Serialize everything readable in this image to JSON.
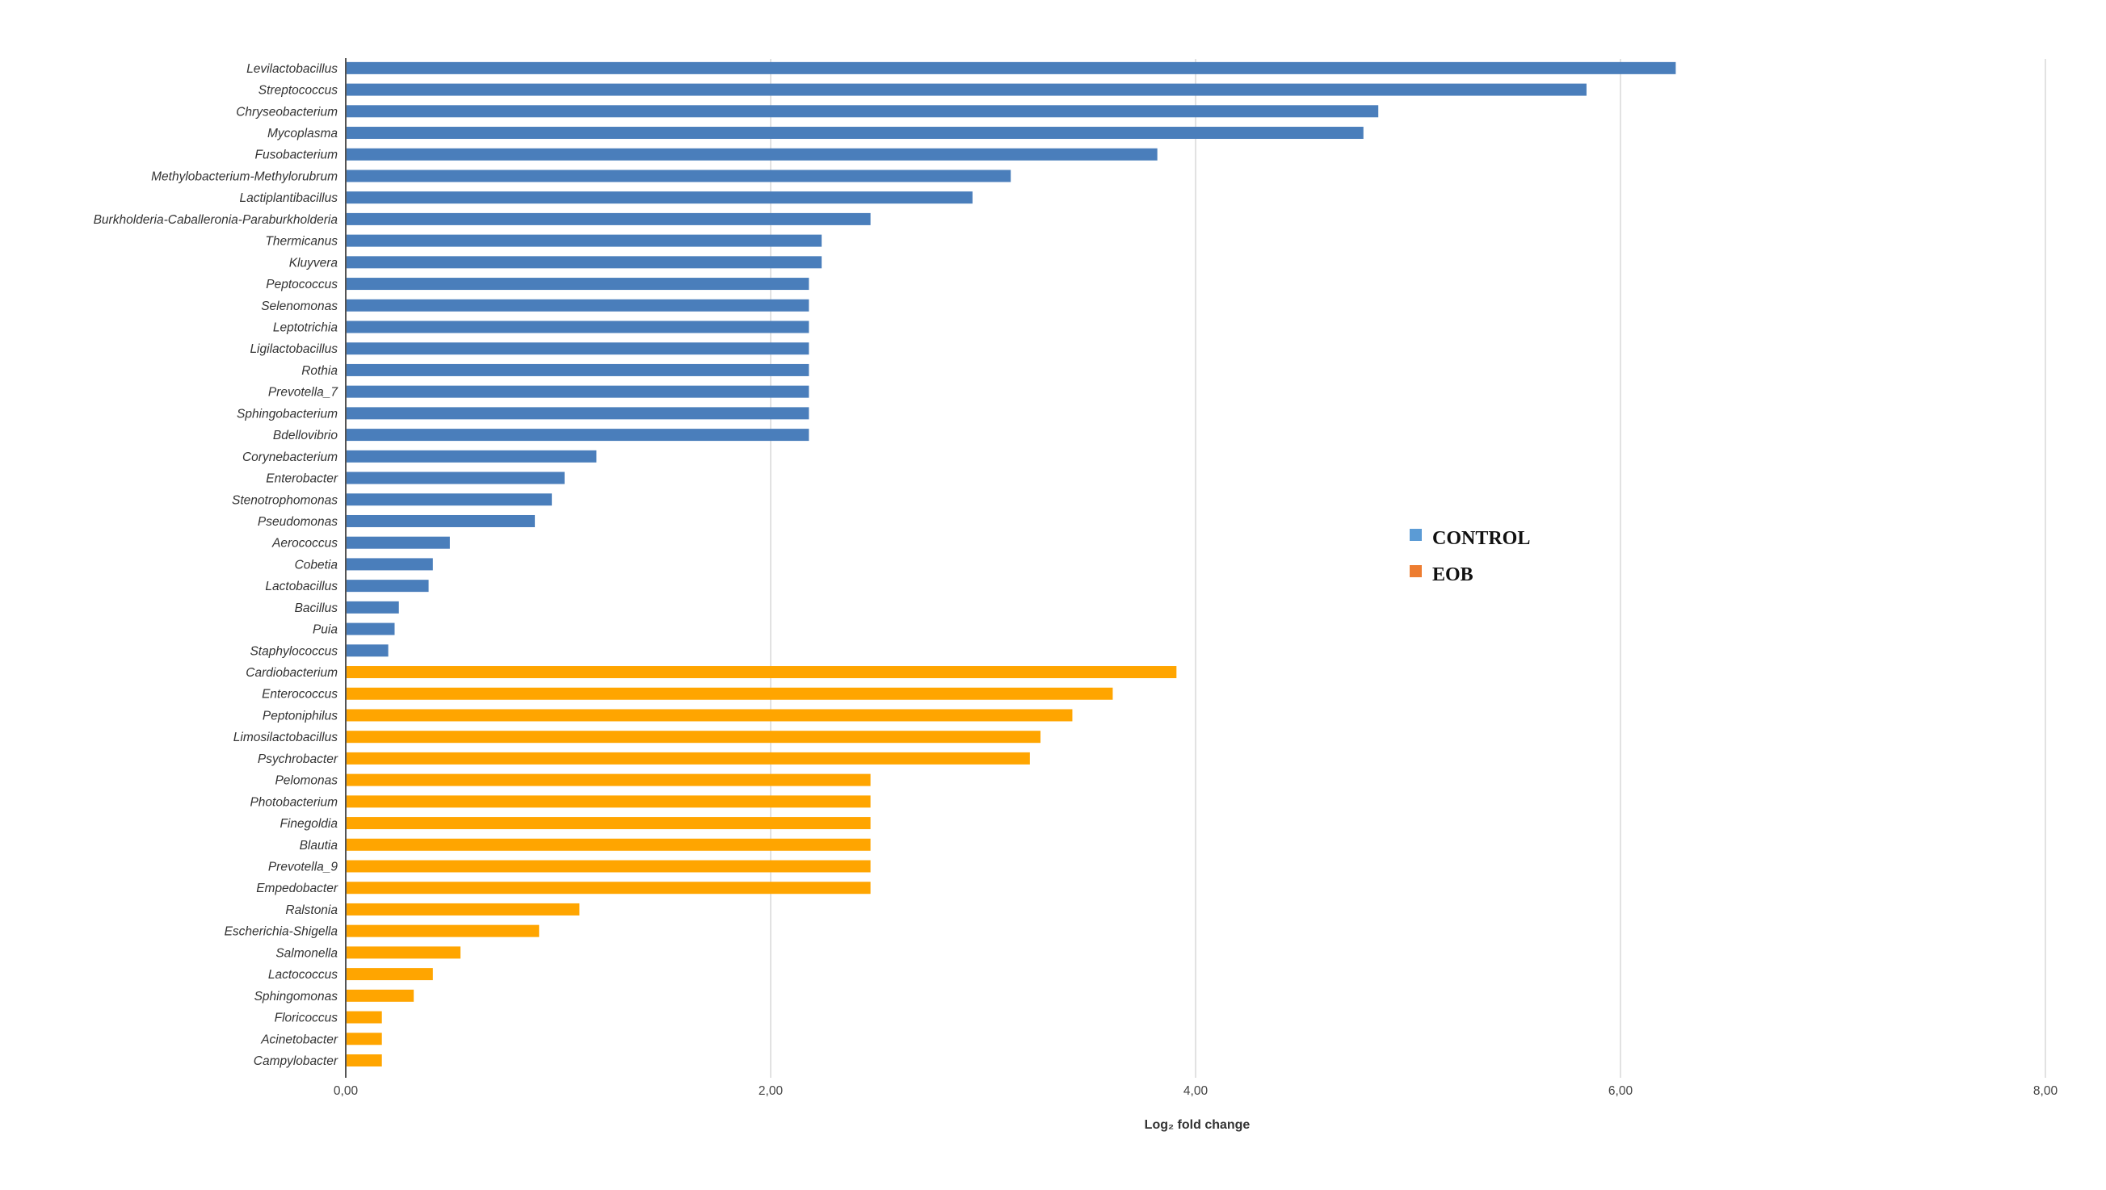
{
  "chart_data": {
    "type": "bar",
    "orientation": "horizontal",
    "title": "",
    "xlabel": "Log₂ fold change",
    "ylabel": "",
    "xlim": [
      0,
      8
    ],
    "x_ticks": [
      0,
      2,
      4,
      6,
      8
    ],
    "x_tick_labels": [
      "0,00",
      "2,00",
      "4,00",
      "6,00",
      "8,00"
    ],
    "grid": "vertical",
    "legend_position": "center-right",
    "series": [
      {
        "name": "CONTROL",
        "color": "#4A7EBB",
        "categories": [
          "Levilactobacillus",
          "Streptococcus",
          "Chryseobacterium",
          "Mycoplasma",
          "Fusobacterium",
          "Methylobacterium-Methylorubrum",
          "Lactiplantibacillus",
          "Burkholderia-Caballeronia-Paraburkholderia",
          "Thermicanus",
          "Kluyvera",
          "Peptococcus",
          "Selenomonas",
          "Leptotrichia",
          "Ligilactobacillus",
          "Rothia",
          "Prevotella_7",
          "Sphingobacterium",
          "Bdellovibrio",
          "Corynebacterium",
          "Enterobacter",
          "Stenotrophomonas",
          "Pseudomonas",
          "Aerococcus",
          "Cobetia",
          "Lactobacillus",
          "Bacillus",
          "Puia",
          "Staphylococcus"
        ],
        "values": [
          6.26,
          5.84,
          4.86,
          4.79,
          3.82,
          3.13,
          2.95,
          2.47,
          2.24,
          2.24,
          2.18,
          2.18,
          2.18,
          2.18,
          2.18,
          2.18,
          2.18,
          2.18,
          1.18,
          1.03,
          0.97,
          0.89,
          0.49,
          0.41,
          0.39,
          0.25,
          0.23,
          0.2
        ]
      },
      {
        "name": "EOB",
        "color": "#FFA500",
        "categories": [
          "Cardiobacterium",
          "Enterococcus",
          "Peptoniphilus",
          "Limosilactobacillus",
          "Psychrobacter",
          "Pelomonas",
          "Photobacterium",
          "Finegoldia",
          "Blautia",
          "Prevotella_9",
          "Empedobacter",
          "Ralstonia",
          "Escherichia-Shigella",
          "Salmonella",
          "Lactococcus",
          "Sphingomonas",
          "Floricoccus",
          "Acinetobacter",
          "Campylobacter"
        ],
        "values": [
          3.91,
          3.61,
          3.42,
          3.27,
          3.22,
          2.47,
          2.47,
          2.47,
          2.47,
          2.47,
          2.47,
          1.1,
          0.91,
          0.54,
          0.41,
          0.32,
          0.17,
          0.17,
          0.17
        ]
      }
    ],
    "legend": [
      {
        "label": "CONTROL",
        "swatch_color": "#5B9BD5"
      },
      {
        "label": "EOB",
        "swatch_color": "#ED7D31"
      }
    ]
  }
}
